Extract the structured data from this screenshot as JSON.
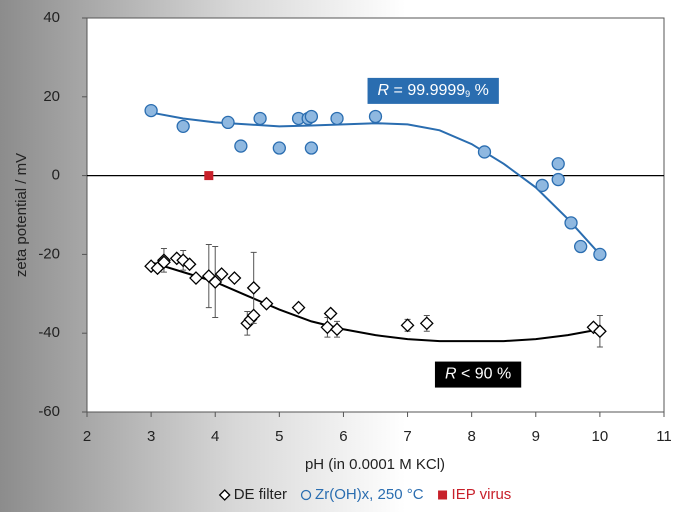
{
  "chart_data": {
    "type": "scatter",
    "x_label": "pH (in 0.0001 M KCl)",
    "y_label": "zeta potential / mV",
    "xlim": [
      2,
      11
    ],
    "xticks": [
      2,
      3,
      4,
      5,
      6,
      7,
      8,
      9,
      10,
      11
    ],
    "ylim": [
      -60,
      40
    ],
    "yticks": [
      -60,
      -40,
      -20,
      0,
      20,
      40
    ],
    "zero_line": true,
    "legend": "bottom",
    "series": [
      {
        "name": "DE filter",
        "marker": "diamond",
        "color": "#000000",
        "x": [
          3.0,
          3.1,
          3.2,
          3.2,
          3.4,
          3.5,
          3.6,
          3.7,
          3.9,
          4.0,
          4.1,
          4.3,
          4.5,
          4.55,
          4.6,
          4.6,
          4.8,
          5.3,
          5.75,
          5.8,
          5.9,
          7.0,
          7.3,
          9.9,
          10.0
        ],
        "y": [
          -23,
          -23.5,
          -21.5,
          -22,
          -21,
          -21.5,
          -22.5,
          -26,
          -25.5,
          -27,
          -25,
          -26,
          -37.5,
          -36.5,
          -28.5,
          -35.5,
          -32.5,
          -33.5,
          -38.5,
          -35,
          -39,
          -38,
          -37.5,
          -38.5,
          -39.5
        ],
        "errors": [
          null,
          null,
          3,
          null,
          null,
          2.5,
          null,
          null,
          8,
          9,
          null,
          null,
          3,
          null,
          9,
          null,
          null,
          null,
          2.5,
          null,
          2,
          1.5,
          2,
          null,
          4
        ]
      },
      {
        "name": "Zr(OH)x, 250 °C",
        "marker": "circle",
        "color": "#2a6db0",
        "x": [
          3.0,
          3.5,
          4.2,
          4.4,
          4.7,
          5.0,
          5.3,
          5.45,
          5.5,
          5.5,
          5.9,
          6.5,
          8.2,
          9.1,
          9.35,
          9.35,
          9.55,
          9.7,
          10.0
        ],
        "y": [
          16.5,
          12.5,
          13.5,
          7.5,
          14.5,
          7,
          14.5,
          14.5,
          7,
          15,
          14.5,
          15,
          6,
          -2.5,
          3,
          -1,
          -12,
          -18,
          -20
        ]
      },
      {
        "name": "IEP virus",
        "marker": "square",
        "color": "#c8202a",
        "x": [
          3.9
        ],
        "y": [
          0
        ]
      }
    ],
    "trendlines": [
      {
        "color": "#2a6db0",
        "x": [
          3,
          3.5,
          4,
          4.5,
          5,
          5.5,
          6,
          6.5,
          7,
          7.5,
          8,
          8.5,
          9,
          9.5,
          10
        ],
        "y": [
          16,
          14.5,
          13.5,
          13,
          12.5,
          12.7,
          13,
          13.3,
          13,
          11.5,
          8,
          3,
          -3,
          -11,
          -20
        ]
      },
      {
        "color": "#000000",
        "x": [
          3,
          3.5,
          4,
          4.5,
          5,
          5.5,
          6,
          6.5,
          7,
          7.5,
          8,
          8.5,
          9,
          9.5,
          10
        ],
        "y": [
          -22,
          -24.5,
          -27,
          -30.5,
          -34,
          -37,
          -39,
          -40.5,
          -41.5,
          -42,
          -42,
          -42,
          -41.5,
          -40.5,
          -39
        ]
      }
    ],
    "annotations": [
      {
        "italic": "R",
        "text": " = 99.9999",
        "subscript": "9",
        "suffix": " %",
        "x": 7.4,
        "y": 21.5,
        "fill": "#2a6db0"
      },
      {
        "italic": "R",
        "text": " < 90 %",
        "x": 8.1,
        "y": -50.5,
        "fill": "#000000"
      }
    ]
  }
}
